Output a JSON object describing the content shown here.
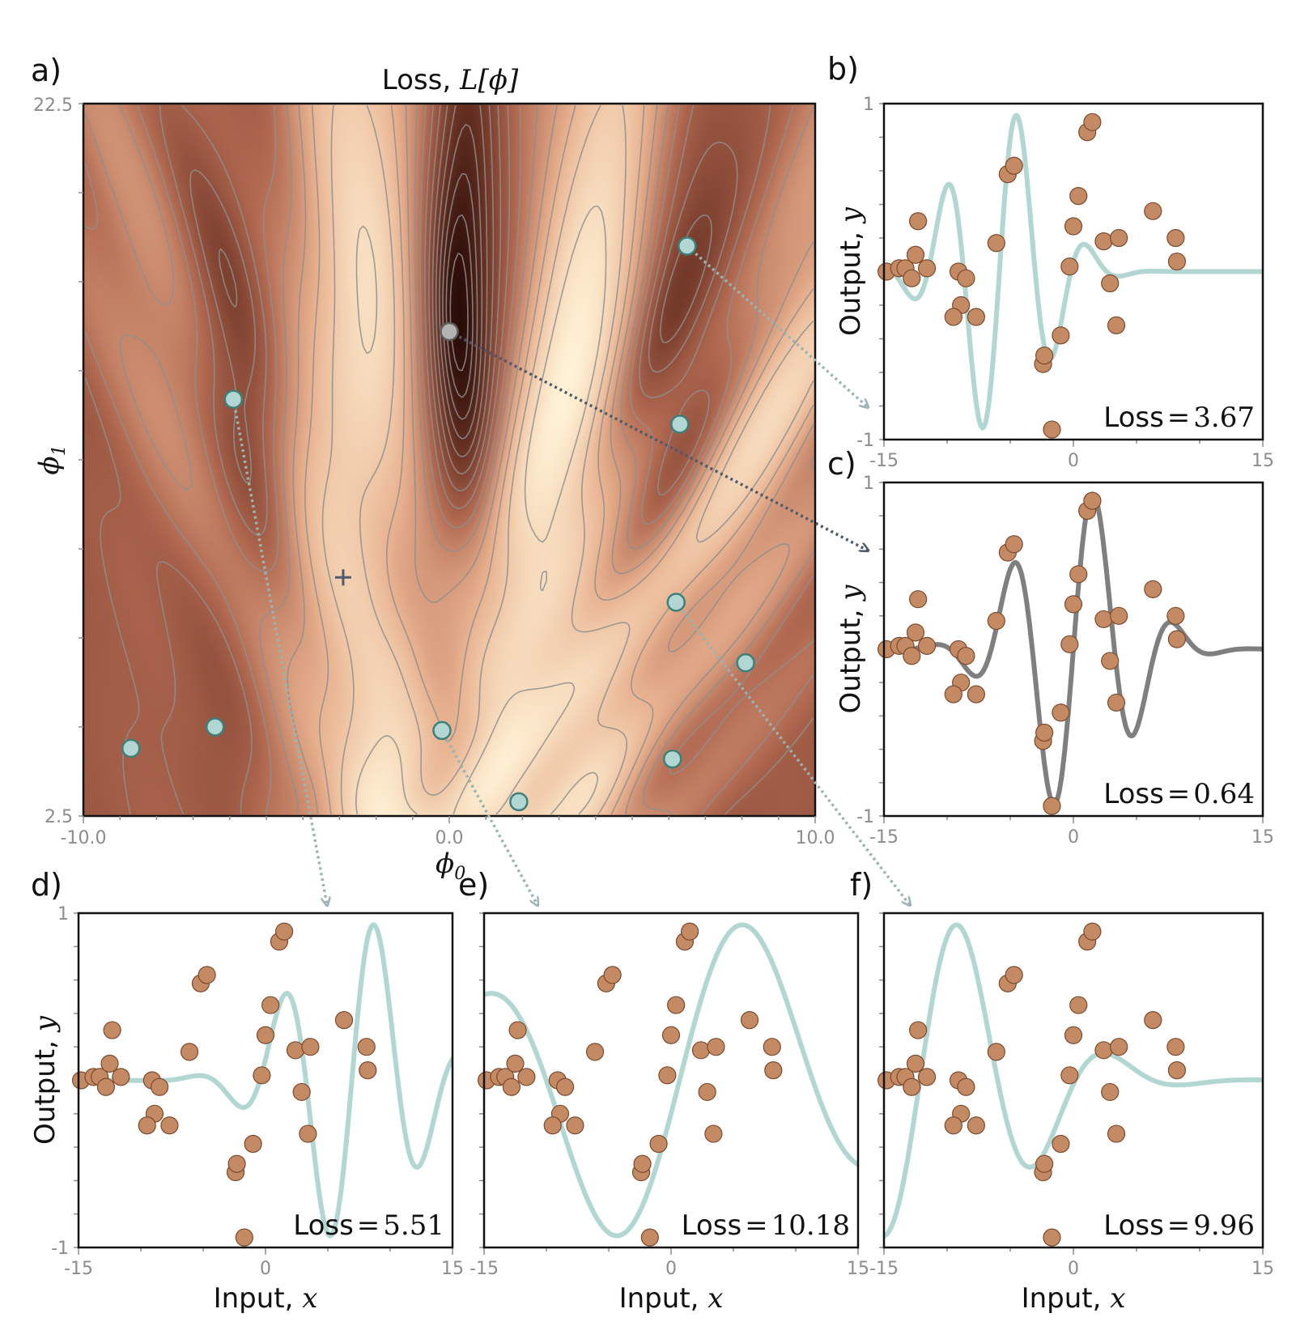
{
  "chart_data": [
    {
      "panel": "a)",
      "type": "heatmap",
      "title_text": "Loss, ",
      "title_math": "L[ϕ]",
      "xlabel": "ϕ",
      "xlabel_sub": "0",
      "ylabel": "ϕ",
      "ylabel_sub": "1",
      "xlim": [
        -10.0,
        10.0
      ],
      "ylim": [
        2.5,
        22.5
      ],
      "xticklabels": [
        "-10.0",
        "0.0",
        "10.0"
      ],
      "yticklabels": [
        "2.5",
        "22.5"
      ],
      "colormap": [
        "#2b0d08",
        "#6e3526",
        "#b06850",
        "#e8b290",
        "#fff2d6"
      ],
      "contour_color": "#8e8e8e",
      "minimum_marker": {
        "x": -2.9,
        "y": 9.2
      },
      "points": [
        {
          "x": 6.5,
          "y": 18.5,
          "color": "#b2d7d2",
          "target": "b)"
        },
        {
          "x": 0.0,
          "y": 16.1,
          "color": "#b3b3b3",
          "target": "c)"
        },
        {
          "x": -5.9,
          "y": 14.2,
          "color": "#b2d7d2",
          "target": "d)"
        },
        {
          "x": -0.2,
          "y": 4.9,
          "color": "#b2d7d2",
          "target": "e)"
        },
        {
          "x": 6.2,
          "y": 8.5,
          "color": "#b2d7d2",
          "target": "f)"
        },
        {
          "x": 6.3,
          "y": 13.5,
          "color": "#b2d7d2"
        },
        {
          "x": 8.1,
          "y": 6.8,
          "color": "#b2d7d2"
        },
        {
          "x": -8.7,
          "y": 4.4,
          "color": "#b2d7d2"
        },
        {
          "x": -6.4,
          "y": 5.0,
          "color": "#b2d7d2"
        },
        {
          "x": 6.1,
          "y": 4.1,
          "color": "#b2d7d2"
        },
        {
          "x": 1.9,
          "y": 2.9,
          "color": "#b2d7d2"
        }
      ]
    },
    {
      "panel": "b)",
      "type": "scatter+line",
      "phi0": 6.5,
      "phi1": 18.5,
      "line_color": "#b2d7d2",
      "loss_label": "Loss",
      "loss_value": "3.67",
      "xlim": [
        -15,
        15
      ],
      "ylim": [
        -1,
        1
      ],
      "xticklabels": [
        "-15",
        "0",
        "15"
      ],
      "yticklabels": [
        "1",
        "-1"
      ],
      "ylabel": "Output, ",
      "ylabel_math": "y",
      "xlabel": "",
      "xlabel_math": ""
    },
    {
      "panel": "c)",
      "type": "scatter+line",
      "phi0": 0.0,
      "phi1": 16.1,
      "line_color": "#7f7f7f",
      "loss_label": "Loss",
      "loss_value": "0.64",
      "xlim": [
        -15,
        15
      ],
      "ylim": [
        -1,
        1
      ],
      "xticklabels": [
        "-15",
        "0",
        "15"
      ],
      "yticklabels": [
        "1",
        "-1"
      ],
      "ylabel": "Output, ",
      "ylabel_math": "y",
      "xlabel": "",
      "xlabel_math": ""
    },
    {
      "panel": "d)",
      "type": "scatter+line",
      "phi0": -5.9,
      "phi1": 14.2,
      "line_color": "#b2d7d2",
      "loss_label": "Loss",
      "loss_value": "5.51",
      "xlim": [
        -15,
        15
      ],
      "ylim": [
        -1,
        1
      ],
      "xticklabels": [
        "-15",
        "0",
        "15"
      ],
      "yticklabels": [
        "1",
        "-1"
      ],
      "ylabel": "Output, ",
      "ylabel_math": "y",
      "xlabel": "Input, ",
      "xlabel_math": "x"
    },
    {
      "panel": "e)",
      "type": "scatter+line",
      "phi0": -0.2,
      "phi1": 4.9,
      "line_color": "#b2d7d2",
      "loss_label": "Loss",
      "loss_value": "10.18",
      "xlim": [
        -15,
        15
      ],
      "ylim": [
        -1,
        1
      ],
      "xticklabels": [
        "-15",
        "0",
        "15"
      ],
      "yticklabels": [],
      "ylabel": "",
      "ylabel_math": "",
      "xlabel": "Input, ",
      "xlabel_math": "x"
    },
    {
      "panel": "f)",
      "type": "scatter+line",
      "phi0": 6.2,
      "phi1": 8.5,
      "line_color": "#b2d7d2",
      "loss_label": "Loss",
      "loss_value": "9.96",
      "xlim": [
        -15,
        15
      ],
      "ylim": [
        -1,
        1
      ],
      "xticklabels": [
        "-15",
        "0",
        "15"
      ],
      "yticklabels": [],
      "ylabel": "",
      "ylabel_math": "",
      "xlabel": "Input, ",
      "xlabel_math": "x"
    }
  ],
  "training_data": {
    "marker_color": "#c48a63",
    "x": [
      -14.8,
      -13.8,
      -13.3,
      -12.8,
      -12.5,
      -12.3,
      -11.6,
      -9.1,
      -8.9,
      -9.5,
      -8.5,
      -7.7,
      -6.1,
      -5.2,
      -4.7,
      -2.4,
      -2.3,
      -1.7,
      -1.0,
      -0.3,
      0.0,
      0.4,
      1.1,
      1.5,
      2.4,
      2.9,
      3.4,
      3.6,
      6.3,
      8.2,
      8.1
    ],
    "y": [
      0.0,
      0.02,
      0.02,
      -0.04,
      0.1,
      0.3,
      0.02,
      0.0,
      -0.2,
      -0.27,
      -0.04,
      -0.27,
      0.17,
      0.58,
      0.63,
      -0.55,
      -0.5,
      -0.94,
      -0.38,
      0.03,
      0.27,
      0.45,
      0.83,
      0.89,
      0.18,
      -0.07,
      -0.32,
      0.2,
      0.36,
      0.06,
      0.2
    ]
  }
}
